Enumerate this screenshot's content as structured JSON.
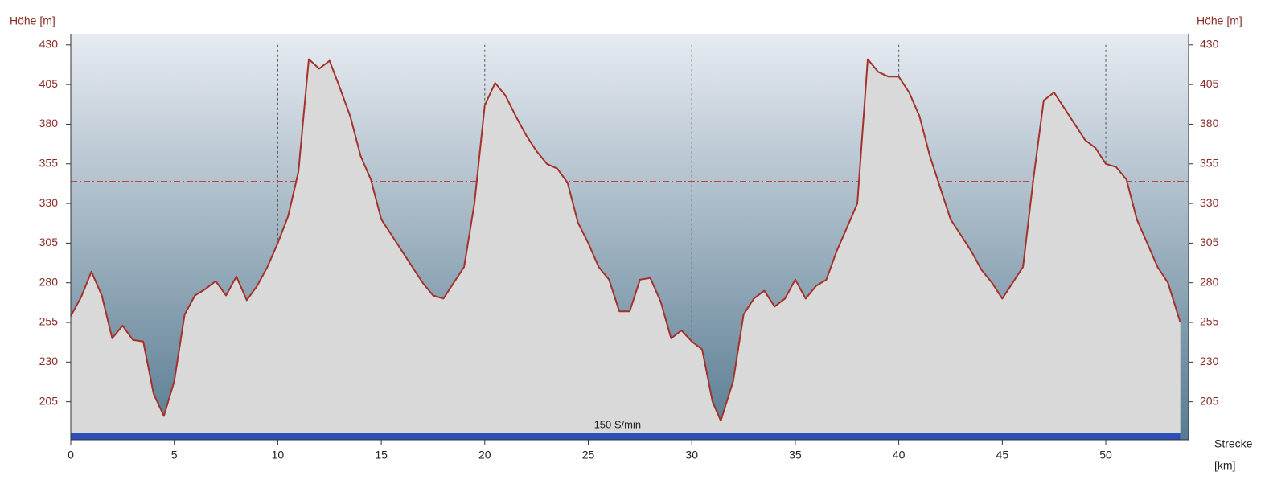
{
  "chart_data": {
    "type": "area",
    "y_label": "Höhe [m]",
    "x_label_1": "Strecke",
    "x_label_2": "[km]",
    "annotation": "150 S/min",
    "line_color": "#a3322a",
    "fill_color": "#d9d9d9",
    "reference_line": 344,
    "xgrid": [
      10,
      20,
      30,
      40,
      50
    ],
    "xlim": [
      0,
      54
    ],
    "xticks": [
      0,
      5,
      10,
      15,
      20,
      25,
      30,
      35,
      40,
      45,
      50
    ],
    "ylim": [
      181,
      437
    ],
    "yticks": [
      205,
      230,
      255,
      280,
      305,
      330,
      355,
      380,
      405,
      430
    ],
    "x": [
      0,
      0.5,
      1,
      1.5,
      2,
      2.5,
      3,
      3.5,
      4,
      4.5,
      5,
      5.5,
      6,
      6.5,
      7,
      7.5,
      8,
      8.5,
      9,
      9.5,
      10,
      10.5,
      11,
      11.5,
      12,
      12.5,
      13,
      13.5,
      14,
      14.5,
      15,
      15.5,
      16,
      16.5,
      17,
      17.5,
      18,
      18.5,
      19,
      19.5,
      20,
      20.5,
      21,
      21.5,
      22,
      22.5,
      23,
      23.5,
      24,
      24.5,
      25,
      25.5,
      26,
      26.5,
      27,
      27.5,
      28,
      28.5,
      29,
      29.5,
      30,
      30.5,
      31,
      31.4,
      32,
      32.5,
      33,
      33.5,
      34,
      34.5,
      35,
      35.5,
      36,
      36.5,
      37,
      37.5,
      38,
      38.5,
      39,
      39.5,
      40,
      40.5,
      41,
      41.5,
      42,
      42.5,
      43,
      43.5,
      44,
      44.5,
      45,
      45.5,
      46,
      46.5,
      47,
      47.5,
      48,
      48.5,
      49,
      49.5,
      50,
      50.5,
      51,
      51.5,
      52,
      52.5,
      53,
      53.6
    ],
    "values": [
      259,
      271,
      287,
      272,
      245,
      253,
      244,
      243,
      210,
      196,
      218,
      260,
      272,
      276,
      281,
      272,
      284,
      269,
      278,
      290,
      305,
      322,
      350,
      421,
      415,
      420,
      403,
      385,
      360,
      345,
      320,
      310,
      300,
      290,
      280,
      272,
      270,
      280,
      290,
      330,
      392,
      406,
      398,
      385,
      373,
      363,
      355,
      352,
      343,
      318,
      305,
      290,
      282,
      262,
      262,
      282,
      283,
      268,
      245,
      250,
      243,
      238,
      205,
      193,
      218,
      260,
      270,
      275,
      265,
      270,
      282,
      270,
      278,
      282,
      300,
      315,
      330,
      421,
      413,
      410,
      410,
      400,
      385,
      360,
      340,
      320,
      310,
      300,
      288,
      280,
      270,
      280,
      290,
      345,
      395,
      400,
      390,
      380,
      370,
      365,
      355,
      353,
      345,
      320,
      305,
      290,
      280,
      255
    ]
  }
}
